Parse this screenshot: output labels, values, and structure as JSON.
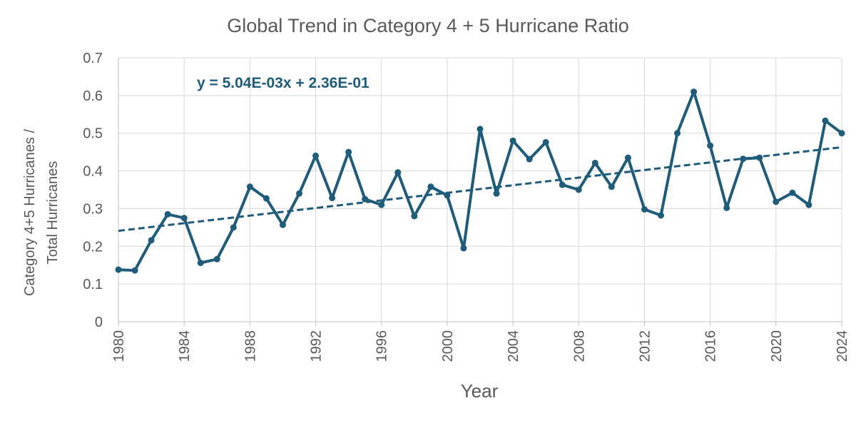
{
  "chart_data": {
    "type": "line",
    "title": "Global Trend in Category 4 + 5 Hurricane Ratio",
    "xlabel": "Year",
    "ylabel_lines": [
      "Category 4+5 Hurricanes /",
      "Total Hurricanes"
    ],
    "xlim": [
      1980,
      2024
    ],
    "ylim": [
      0,
      0.7
    ],
    "x_ticks": [
      1980,
      1984,
      1988,
      1992,
      1996,
      2000,
      2004,
      2008,
      2012,
      2016,
      2020,
      2024
    ],
    "y_ticks": [
      0,
      0.1,
      0.2,
      0.3,
      0.4,
      0.5,
      0.6,
      0.7
    ],
    "grid": true,
    "series": [
      {
        "color": "#1F5C7A",
        "x": [
          1980,
          1981,
          1982,
          1983,
          1984,
          1985,
          1986,
          1987,
          1988,
          1989,
          1990,
          1991,
          1992,
          1993,
          1994,
          1995,
          1996,
          1997,
          1998,
          1999,
          2000,
          2001,
          2002,
          2003,
          2004,
          2005,
          2006,
          2007,
          2008,
          2009,
          2010,
          2011,
          2012,
          2013,
          2014,
          2015,
          2016,
          2017,
          2018,
          2019,
          2020,
          2021,
          2022,
          2023,
          2024
        ],
        "y": [
          0.138,
          0.136,
          0.216,
          0.285,
          0.275,
          0.156,
          0.166,
          0.25,
          0.358,
          0.327,
          0.257,
          0.34,
          0.44,
          0.328,
          0.45,
          0.325,
          0.31,
          0.396,
          0.28,
          0.358,
          0.335,
          0.195,
          0.511,
          0.34,
          0.48,
          0.431,
          0.476,
          0.363,
          0.35,
          0.421,
          0.358,
          0.435,
          0.298,
          0.282,
          0.5,
          0.61,
          0.467,
          0.302,
          0.432,
          0.435,
          0.318,
          0.342,
          0.31,
          0.533,
          0.5
        ]
      }
    ],
    "trendline": {
      "type": "linear",
      "slope": 0.00504,
      "intercept": 0.236,
      "x0": 1979,
      "style": "dashed",
      "color": "#1F5C7A",
      "label": "y = 5.04E-03x + 2.36E-01"
    }
  }
}
